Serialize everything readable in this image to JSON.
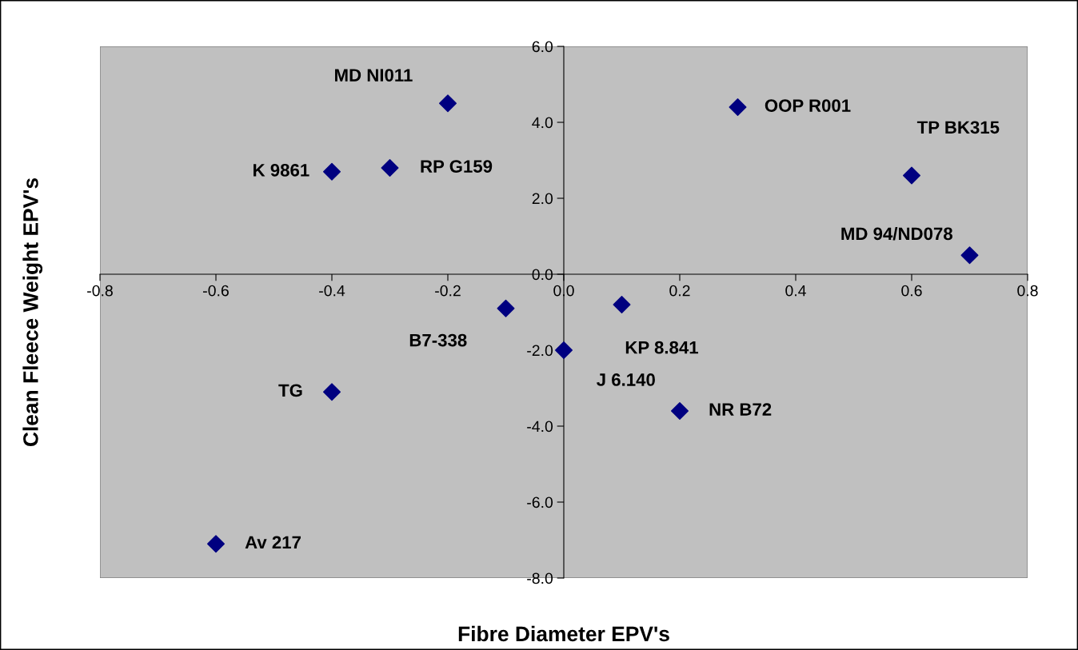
{
  "chart_data": {
    "type": "scatter",
    "xlabel": "Fibre Diameter EPV's",
    "ylabel": "Clean Fleece Weight EPV's",
    "x": [
      -0.2,
      -0.4,
      -0.3,
      0.3,
      0.6,
      0.7,
      -0.1,
      0.1,
      0.0,
      -0.4,
      0.2,
      -0.6
    ],
    "series": [
      {
        "color": "#000080",
        "values": [
          4.5,
          2.7,
          2.8,
          4.4,
          2.6,
          0.5,
          -0.9,
          -0.8,
          -2.0,
          -3.1,
          -3.6,
          -7.1
        ]
      }
    ],
    "marker": "diamond",
    "grid": false,
    "legend": false,
    "xlim": [
      -0.8,
      0.8
    ],
    "xticks": [
      {
        "value": -0.8,
        "label": "-0.8"
      },
      {
        "value": -0.6,
        "label": "-0.6"
      },
      {
        "value": -0.4,
        "label": "-0.4"
      },
      {
        "value": -0.2,
        "label": "-0.2"
      },
      {
        "value": 0,
        "label": "0.0"
      },
      {
        "value": 0.2,
        "label": "0.2"
      },
      {
        "value": 0.4,
        "label": "0.4"
      },
      {
        "value": 0.6,
        "label": "0.6"
      },
      {
        "value": 0.8,
        "label": "0.8"
      }
    ],
    "ylim": [
      -8,
      6
    ],
    "yticks": [
      {
        "value": -8,
        "label": "-8.0"
      },
      {
        "value": -6,
        "label": "-6.0"
      },
      {
        "value": -4,
        "label": "-4.0"
      },
      {
        "value": -2,
        "label": "-2.0"
      },
      {
        "value": 0,
        "label": "0.0"
      },
      {
        "value": 2,
        "label": "2.0"
      },
      {
        "value": 4,
        "label": "4.0"
      },
      {
        "value": 6,
        "label": "6.0"
      }
    ],
    "annotations": [
      {
        "text": "MD NI011",
        "x": -0.2,
        "y": 4.5
      },
      {
        "text": "K 9861",
        "x": -0.4,
        "y": 2.7
      },
      {
        "text": "RP G159",
        "x": -0.3,
        "y": 2.8
      },
      {
        "text": "OOP R001",
        "x": 0.3,
        "y": 4.4
      },
      {
        "text": "TP BK315",
        "x": 0.6,
        "y": 2.6
      },
      {
        "text": "MD 94/ND078",
        "x": 0.7,
        "y": 0.5
      },
      {
        "text": "B7-338",
        "x": -0.1,
        "y": -0.9
      },
      {
        "text": "KP 8.841",
        "x": 0.1,
        "y": -0.8
      },
      {
        "text": "J 6.140",
        "x": 0.0,
        "y": -2.0
      },
      {
        "text": "TG",
        "x": -0.4,
        "y": -3.1
      },
      {
        "text": "NR B72",
        "x": 0.2,
        "y": -3.6
      },
      {
        "text": "Av 217",
        "x": -0.6,
        "y": -7.1
      }
    ]
  }
}
